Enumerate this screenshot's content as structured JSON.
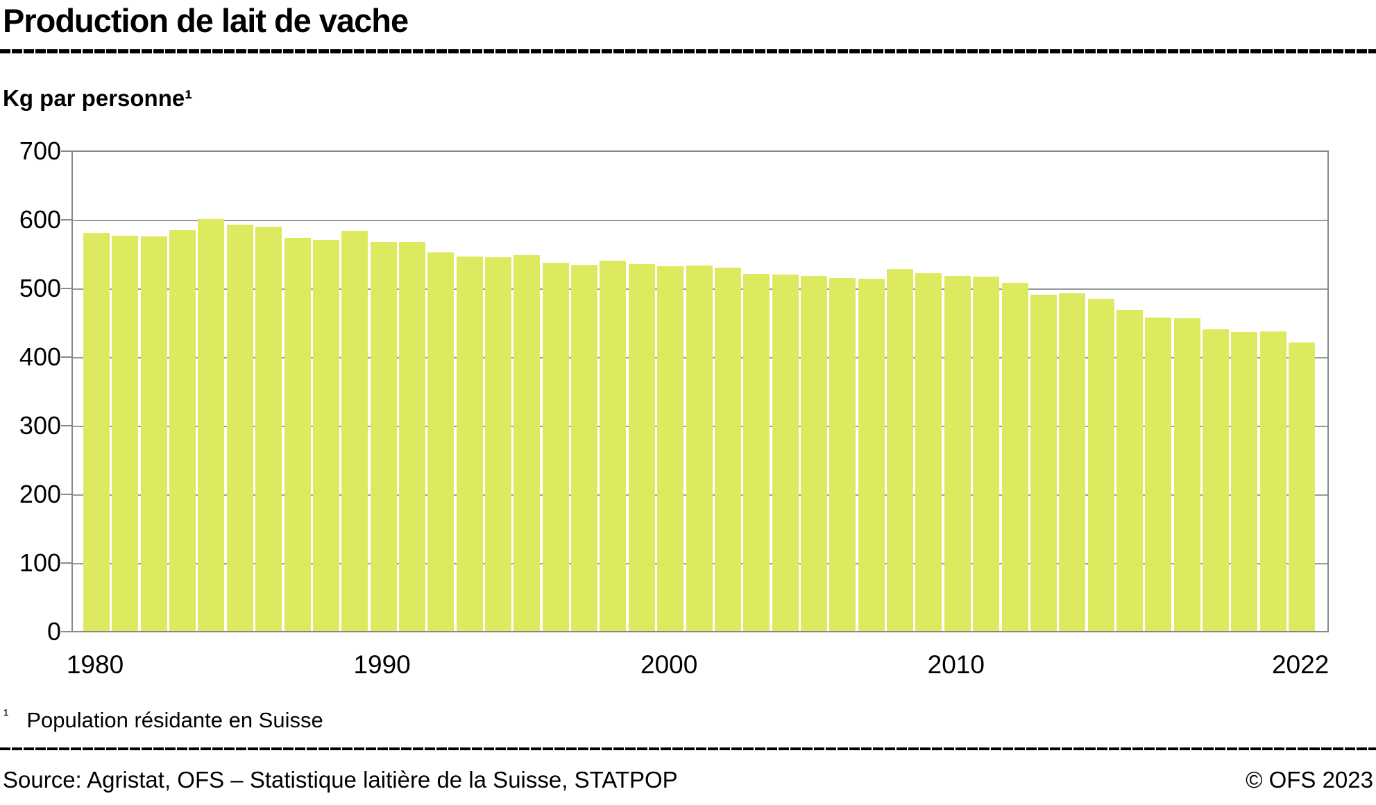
{
  "header": {
    "title": "Production de lait de vache"
  },
  "chart_data": {
    "type": "bar",
    "title": "Production de lait de vache",
    "subtitle": "Kg par personne¹",
    "ylabel": "Kg par personne¹",
    "xlabel": "",
    "ylim": [
      0,
      700
    ],
    "ytick_step": 100,
    "yticks": [
      700,
      600,
      500,
      400,
      300,
      200,
      100,
      0
    ],
    "xtick_labels": [
      "1980",
      "1990",
      "2000",
      "2010",
      "2022"
    ],
    "grid": true,
    "legend_position": "none",
    "bar_color": "#dde95f",
    "grid_color": "#999999",
    "axis_color": "#888888",
    "categories": [
      1980,
      1981,
      1982,
      1983,
      1984,
      1985,
      1986,
      1987,
      1988,
      1989,
      1990,
      1991,
      1992,
      1993,
      1994,
      1995,
      1996,
      1997,
      1998,
      1999,
      2000,
      2001,
      2002,
      2003,
      2004,
      2005,
      2006,
      2007,
      2008,
      2009,
      2010,
      2011,
      2012,
      2013,
      2014,
      2015,
      2016,
      2017,
      2018,
      2019,
      2020,
      2021,
      2022
    ],
    "values": [
      580,
      576,
      575,
      584,
      600,
      592,
      589,
      573,
      570,
      583,
      567,
      567,
      552,
      545,
      544,
      547,
      536,
      533,
      539,
      534,
      531,
      532,
      529,
      520,
      519,
      517,
      514,
      513,
      527,
      521,
      517,
      516,
      507,
      490,
      492,
      484,
      468,
      457,
      456,
      439,
      435,
      436,
      420
    ]
  },
  "footnote": {
    "marker": "¹",
    "text": "Population résidante en Suisse"
  },
  "source": {
    "left": "Source: Agristat, OFS – Statistique laitière de la Suisse, STATPOP",
    "right": "© OFS 2023"
  }
}
